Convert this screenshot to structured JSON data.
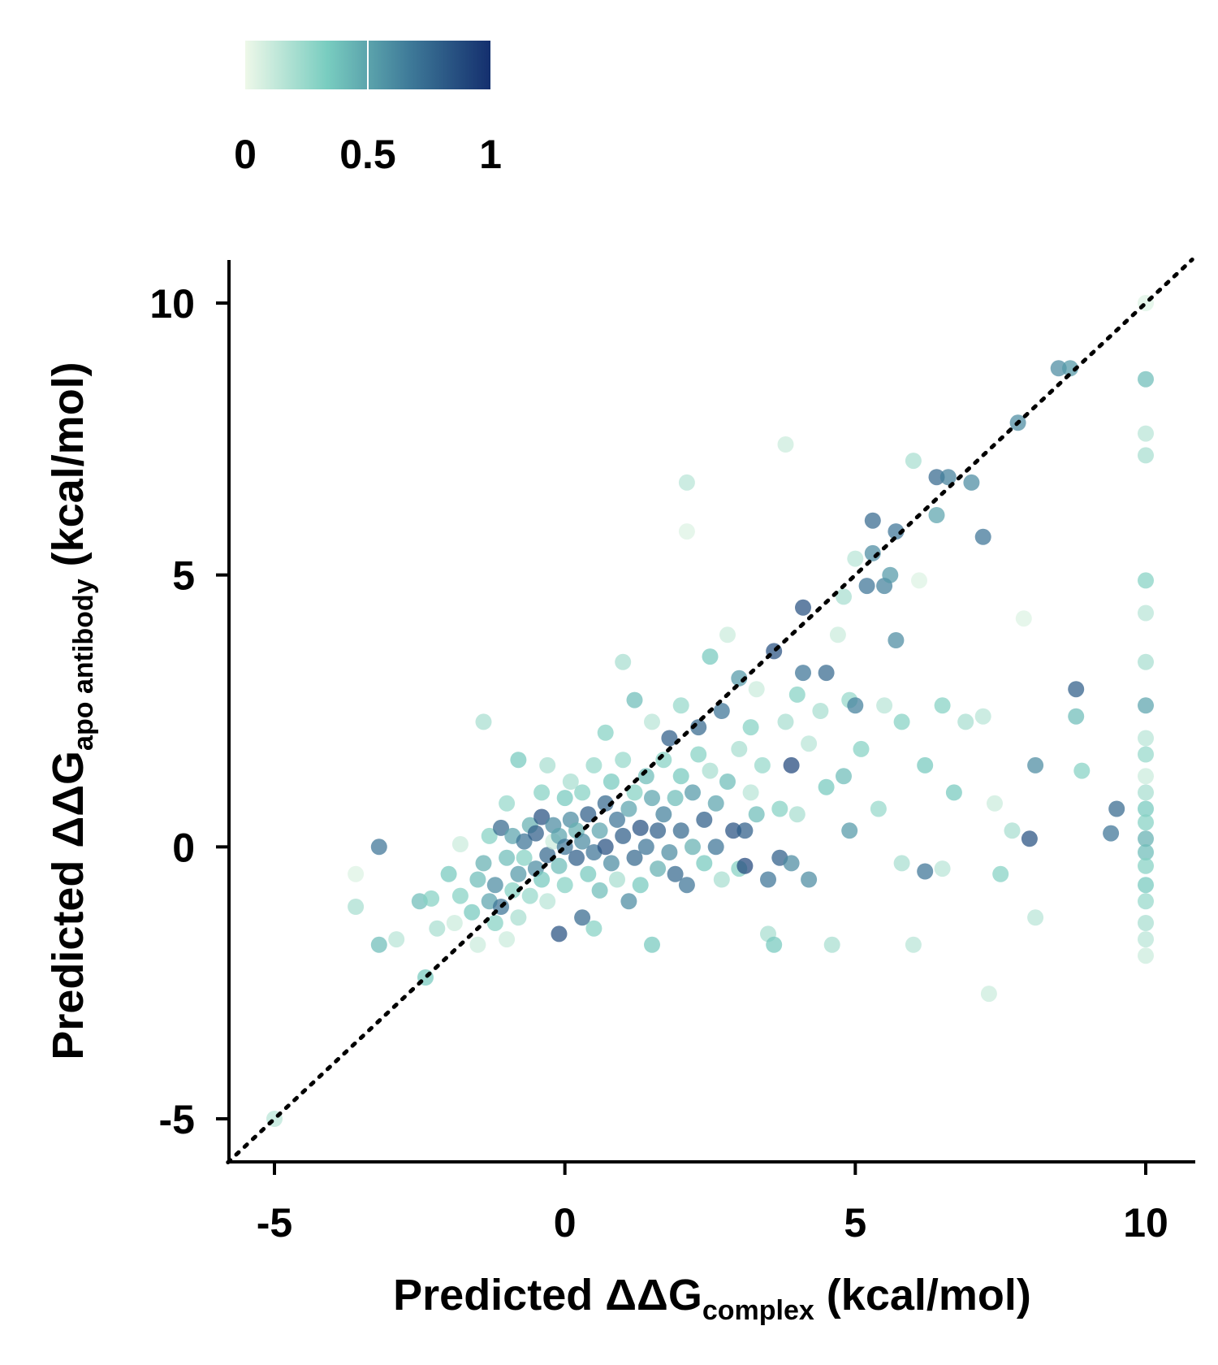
{
  "chart_data": {
    "type": "scatter",
    "title": "",
    "xlabel": {
      "prefix": "Predicted ΔΔG",
      "subscript": "complex",
      "suffix": " (kcal/mol)"
    },
    "ylabel": {
      "prefix": "Predicted ΔΔG",
      "subscript": "apo antibody",
      "suffix": " (kcal/mol)"
    },
    "xlim": [
      -5.8,
      10.8
    ],
    "ylim": [
      -5.8,
      10.8
    ],
    "xticks": [
      -5,
      0,
      5,
      10
    ],
    "yticks": [
      -5,
      0,
      5,
      10
    ],
    "xtick_labels": [
      "-5",
      "0",
      "5",
      "10"
    ],
    "ytick_labels": [
      "-5",
      "0",
      "5",
      "10"
    ],
    "reference_line": {
      "style": "dotted",
      "color": "#000000",
      "from": [
        -5.8,
        -5.8
      ],
      "to": [
        10.8,
        10.8
      ]
    },
    "grid": false,
    "colorbar": {
      "position": "top-left",
      "orientation": "horizontal",
      "range": [
        0,
        1
      ],
      "tick_values": [
        0,
        0.5,
        1
      ],
      "tick_labels": [
        "0",
        "0.5",
        "1"
      ],
      "colors": [
        "#eef8e9",
        "#79cdc0",
        "#3f7b99",
        "#142f6e"
      ]
    },
    "marker_opacity": 0.72,
    "points": [
      {
        "x": -5.0,
        "y": -5.0,
        "c": 0.15
      },
      {
        "x": -3.6,
        "y": -0.5,
        "c": 0.05
      },
      {
        "x": -3.6,
        "y": -1.1,
        "c": 0.2
      },
      {
        "x": -3.2,
        "y": 0.0,
        "c": 0.7
      },
      {
        "x": -3.2,
        "y": -1.8,
        "c": 0.4
      },
      {
        "x": -2.9,
        "y": -1.7,
        "c": 0.15
      },
      {
        "x": -2.5,
        "y": -1.0,
        "c": 0.4
      },
      {
        "x": -2.4,
        "y": -2.4,
        "c": 0.35
      },
      {
        "x": -2.3,
        "y": -0.95,
        "c": 0.3
      },
      {
        "x": -2.2,
        "y": -1.5,
        "c": 0.2
      },
      {
        "x": -2.0,
        "y": -0.5,
        "c": 0.35
      },
      {
        "x": -1.9,
        "y": -1.4,
        "c": 0.1
      },
      {
        "x": -1.8,
        "y": -0.9,
        "c": 0.3
      },
      {
        "x": -1.8,
        "y": 0.05,
        "c": 0.1
      },
      {
        "x": -1.6,
        "y": -1.2,
        "c": 0.35
      },
      {
        "x": -1.5,
        "y": -0.6,
        "c": 0.4
      },
      {
        "x": -1.5,
        "y": -1.8,
        "c": 0.1
      },
      {
        "x": -1.4,
        "y": 2.3,
        "c": 0.2
      },
      {
        "x": -1.4,
        "y": -0.3,
        "c": 0.45
      },
      {
        "x": -1.3,
        "y": -1.0,
        "c": 0.5
      },
      {
        "x": -1.3,
        "y": 0.2,
        "c": 0.3
      },
      {
        "x": -1.2,
        "y": -1.4,
        "c": 0.3
      },
      {
        "x": -1.2,
        "y": -0.7,
        "c": 0.6
      },
      {
        "x": -1.1,
        "y": 0.35,
        "c": 0.75
      },
      {
        "x": -1.1,
        "y": -1.1,
        "c": 0.7
      },
      {
        "x": -1.0,
        "y": -0.2,
        "c": 0.4
      },
      {
        "x": -1.0,
        "y": 0.8,
        "c": 0.25
      },
      {
        "x": -1.0,
        "y": -1.7,
        "c": 0.1
      },
      {
        "x": -0.9,
        "y": 0.2,
        "c": 0.5
      },
      {
        "x": -0.9,
        "y": -0.8,
        "c": 0.3
      },
      {
        "x": -0.8,
        "y": 1.6,
        "c": 0.35
      },
      {
        "x": -0.8,
        "y": -0.5,
        "c": 0.55
      },
      {
        "x": -0.8,
        "y": -1.3,
        "c": 0.2
      },
      {
        "x": -0.7,
        "y": 0.1,
        "c": 0.7
      },
      {
        "x": -0.7,
        "y": -0.2,
        "c": 0.3
      },
      {
        "x": -0.6,
        "y": 0.4,
        "c": 0.45
      },
      {
        "x": -0.6,
        "y": -0.9,
        "c": 0.25
      },
      {
        "x": -0.5,
        "y": 0.25,
        "c": 0.8
      },
      {
        "x": -0.5,
        "y": -0.4,
        "c": 0.6
      },
      {
        "x": -0.4,
        "y": 1.0,
        "c": 0.3
      },
      {
        "x": -0.4,
        "y": 0.55,
        "c": 0.85
      },
      {
        "x": -0.4,
        "y": -0.6,
        "c": 0.35
      },
      {
        "x": -0.3,
        "y": 1.5,
        "c": 0.2
      },
      {
        "x": -0.3,
        "y": -0.15,
        "c": 0.75
      },
      {
        "x": -0.3,
        "y": -1.0,
        "c": 0.15
      },
      {
        "x": -0.2,
        "y": 0.1,
        "c": 0.1
      },
      {
        "x": -0.2,
        "y": 0.4,
        "c": 0.6
      },
      {
        "x": -0.1,
        "y": -1.6,
        "c": 0.85
      },
      {
        "x": -0.1,
        "y": 0.2,
        "c": 0.5
      },
      {
        "x": -0.1,
        "y": -0.35,
        "c": 0.4
      },
      {
        "x": 0.0,
        "y": 0.9,
        "c": 0.35
      },
      {
        "x": 0.0,
        "y": 0.0,
        "c": 0.7
      },
      {
        "x": 0.0,
        "y": -0.7,
        "c": 0.3
      },
      {
        "x": 0.1,
        "y": 0.5,
        "c": 0.6
      },
      {
        "x": 0.1,
        "y": 1.2,
        "c": 0.2
      },
      {
        "x": 0.2,
        "y": -0.2,
        "c": 0.8
      },
      {
        "x": 0.2,
        "y": 0.3,
        "c": 0.45
      },
      {
        "x": 0.3,
        "y": 1.0,
        "c": 0.3
      },
      {
        "x": 0.3,
        "y": -1.3,
        "c": 0.75
      },
      {
        "x": 0.3,
        "y": 0.1,
        "c": 0.6
      },
      {
        "x": 0.4,
        "y": -0.5,
        "c": 0.35
      },
      {
        "x": 0.4,
        "y": 0.6,
        "c": 0.8
      },
      {
        "x": 0.5,
        "y": 1.5,
        "c": 0.25
      },
      {
        "x": 0.5,
        "y": -0.1,
        "c": 0.7
      },
      {
        "x": 0.5,
        "y": -1.5,
        "c": 0.3
      },
      {
        "x": 0.6,
        "y": 0.3,
        "c": 0.5
      },
      {
        "x": 0.6,
        "y": -0.8,
        "c": 0.4
      },
      {
        "x": 0.7,
        "y": 0.8,
        "c": 0.75
      },
      {
        "x": 0.7,
        "y": 2.1,
        "c": 0.3
      },
      {
        "x": 0.7,
        "y": 0.0,
        "c": 0.85
      },
      {
        "x": 0.8,
        "y": -0.3,
        "c": 0.6
      },
      {
        "x": 0.8,
        "y": 1.2,
        "c": 0.35
      },
      {
        "x": 0.9,
        "y": 0.5,
        "c": 0.7
      },
      {
        "x": 0.9,
        "y": -0.6,
        "c": 0.2
      },
      {
        "x": 1.0,
        "y": 3.4,
        "c": 0.2
      },
      {
        "x": 1.0,
        "y": 0.2,
        "c": 0.8
      },
      {
        "x": 1.0,
        "y": 1.6,
        "c": 0.25
      },
      {
        "x": 1.1,
        "y": -1.0,
        "c": 0.6
      },
      {
        "x": 1.1,
        "y": 0.7,
        "c": 0.5
      },
      {
        "x": 1.2,
        "y": 2.7,
        "c": 0.4
      },
      {
        "x": 1.2,
        "y": -0.2,
        "c": 0.75
      },
      {
        "x": 1.2,
        "y": 1.0,
        "c": 0.3
      },
      {
        "x": 1.3,
        "y": 0.35,
        "c": 0.85
      },
      {
        "x": 1.3,
        "y": -0.7,
        "c": 0.35
      },
      {
        "x": 1.4,
        "y": 1.3,
        "c": 0.4
      },
      {
        "x": 1.4,
        "y": 0.0,
        "c": 0.7
      },
      {
        "x": 1.5,
        "y": -1.8,
        "c": 0.35
      },
      {
        "x": 1.5,
        "y": 0.9,
        "c": 0.5
      },
      {
        "x": 1.5,
        "y": 2.3,
        "c": 0.15
      },
      {
        "x": 1.6,
        "y": 0.3,
        "c": 0.8
      },
      {
        "x": 1.6,
        "y": -0.4,
        "c": 0.45
      },
      {
        "x": 1.7,
        "y": 1.6,
        "c": 0.3
      },
      {
        "x": 1.7,
        "y": 0.6,
        "c": 0.65
      },
      {
        "x": 1.8,
        "y": 2.0,
        "c": 0.8
      },
      {
        "x": 1.8,
        "y": -0.1,
        "c": 0.6
      },
      {
        "x": 1.9,
        "y": 0.9,
        "c": 0.4
      },
      {
        "x": 1.9,
        "y": -0.5,
        "c": 0.75
      },
      {
        "x": 2.0,
        "y": 2.6,
        "c": 0.25
      },
      {
        "x": 2.0,
        "y": 0.3,
        "c": 0.75
      },
      {
        "x": 2.0,
        "y": 1.3,
        "c": 0.35
      },
      {
        "x": 2.1,
        "y": 6.7,
        "c": 0.15
      },
      {
        "x": 2.1,
        "y": 5.8,
        "c": 0.05
      },
      {
        "x": 2.1,
        "y": -0.7,
        "c": 0.7
      },
      {
        "x": 2.2,
        "y": 1.0,
        "c": 0.55
      },
      {
        "x": 2.2,
        "y": 0.0,
        "c": 0.45
      },
      {
        "x": 2.3,
        "y": 2.2,
        "c": 0.75
      },
      {
        "x": 2.3,
        "y": 1.7,
        "c": 0.3
      },
      {
        "x": 2.4,
        "y": 0.5,
        "c": 0.8
      },
      {
        "x": 2.4,
        "y": -0.3,
        "c": 0.35
      },
      {
        "x": 2.5,
        "y": 3.5,
        "c": 0.35
      },
      {
        "x": 2.5,
        "y": 1.4,
        "c": 0.2
      },
      {
        "x": 2.6,
        "y": 0.8,
        "c": 0.5
      },
      {
        "x": 2.6,
        "y": 0.0,
        "c": 0.7
      },
      {
        "x": 2.7,
        "y": 2.5,
        "c": 0.7
      },
      {
        "x": 2.7,
        "y": -0.6,
        "c": 0.2
      },
      {
        "x": 2.8,
        "y": 1.2,
        "c": 0.4
      },
      {
        "x": 2.8,
        "y": 3.9,
        "c": 0.1
      },
      {
        "x": 2.9,
        "y": 0.3,
        "c": 0.85
      },
      {
        "x": 3.0,
        "y": 3.1,
        "c": 0.55
      },
      {
        "x": 3.0,
        "y": 1.8,
        "c": 0.2
      },
      {
        "x": 3.0,
        "y": -0.4,
        "c": 0.3
      },
      {
        "x": 3.1,
        "y": 0.3,
        "c": 0.8
      },
      {
        "x": 3.1,
        "y": -0.35,
        "c": 0.9
      },
      {
        "x": 3.2,
        "y": 2.2,
        "c": 0.3
      },
      {
        "x": 3.2,
        "y": 1.0,
        "c": 0.15
      },
      {
        "x": 3.3,
        "y": 2.9,
        "c": 0.1
      },
      {
        "x": 3.3,
        "y": 0.6,
        "c": 0.4
      },
      {
        "x": 3.4,
        "y": 1.5,
        "c": 0.25
      },
      {
        "x": 3.5,
        "y": -1.6,
        "c": 0.2
      },
      {
        "x": 3.5,
        "y": -0.6,
        "c": 0.7
      },
      {
        "x": 3.6,
        "y": 3.6,
        "c": 0.85
      },
      {
        "x": 3.6,
        "y": -1.8,
        "c": 0.35
      },
      {
        "x": 3.7,
        "y": 0.7,
        "c": 0.3
      },
      {
        "x": 3.7,
        "y": -0.2,
        "c": 0.8
      },
      {
        "x": 3.8,
        "y": 7.4,
        "c": 0.1
      },
      {
        "x": 3.8,
        "y": 2.3,
        "c": 0.2
      },
      {
        "x": 3.9,
        "y": 1.5,
        "c": 0.9
      },
      {
        "x": 3.9,
        "y": -0.3,
        "c": 0.6
      },
      {
        "x": 4.0,
        "y": 2.8,
        "c": 0.3
      },
      {
        "x": 4.0,
        "y": 0.6,
        "c": 0.2
      },
      {
        "x": 4.1,
        "y": 4.4,
        "c": 0.85
      },
      {
        "x": 4.1,
        "y": 3.2,
        "c": 0.7
      },
      {
        "x": 4.2,
        "y": 1.9,
        "c": 0.15
      },
      {
        "x": 4.2,
        "y": -0.6,
        "c": 0.6
      },
      {
        "x": 4.4,
        "y": 2.5,
        "c": 0.2
      },
      {
        "x": 4.5,
        "y": 3.2,
        "c": 0.75
      },
      {
        "x": 4.5,
        "y": 1.1,
        "c": 0.35
      },
      {
        "x": 4.6,
        "y": -1.8,
        "c": 0.2
      },
      {
        "x": 4.7,
        "y": 3.9,
        "c": 0.1
      },
      {
        "x": 4.8,
        "y": 4.6,
        "c": 0.2
      },
      {
        "x": 4.8,
        "y": 1.3,
        "c": 0.4
      },
      {
        "x": 4.9,
        "y": 2.7,
        "c": 0.25
      },
      {
        "x": 4.9,
        "y": 0.3,
        "c": 0.55
      },
      {
        "x": 5.0,
        "y": 2.6,
        "c": 0.65
      },
      {
        "x": 5.0,
        "y": 5.3,
        "c": 0.15
      },
      {
        "x": 5.1,
        "y": 1.8,
        "c": 0.3
      },
      {
        "x": 5.2,
        "y": 4.8,
        "c": 0.7
      },
      {
        "x": 5.3,
        "y": 5.4,
        "c": 0.6
      },
      {
        "x": 5.3,
        "y": 6.0,
        "c": 0.75
      },
      {
        "x": 5.4,
        "y": 0.7,
        "c": 0.25
      },
      {
        "x": 5.5,
        "y": 4.8,
        "c": 0.65
      },
      {
        "x": 5.5,
        "y": 2.6,
        "c": 0.15
      },
      {
        "x": 5.6,
        "y": 5.0,
        "c": 0.55
      },
      {
        "x": 5.7,
        "y": 5.8,
        "c": 0.7
      },
      {
        "x": 5.7,
        "y": 3.8,
        "c": 0.6
      },
      {
        "x": 5.8,
        "y": 2.3,
        "c": 0.3
      },
      {
        "x": 5.8,
        "y": -0.3,
        "c": 0.2
      },
      {
        "x": 6.0,
        "y": 7.1,
        "c": 0.2
      },
      {
        "x": 6.0,
        "y": -1.8,
        "c": 0.15
      },
      {
        "x": 6.1,
        "y": 4.9,
        "c": 0.05
      },
      {
        "x": 6.2,
        "y": 1.5,
        "c": 0.35
      },
      {
        "x": 6.2,
        "y": -0.45,
        "c": 0.7
      },
      {
        "x": 6.4,
        "y": 6.1,
        "c": 0.5
      },
      {
        "x": 6.4,
        "y": 6.8,
        "c": 0.75
      },
      {
        "x": 6.5,
        "y": 2.6,
        "c": 0.3
      },
      {
        "x": 6.5,
        "y": -0.4,
        "c": 0.15
      },
      {
        "x": 6.6,
        "y": 6.8,
        "c": 0.65
      },
      {
        "x": 6.7,
        "y": 1.0,
        "c": 0.35
      },
      {
        "x": 6.9,
        "y": 2.3,
        "c": 0.2
      },
      {
        "x": 7.0,
        "y": 6.7,
        "c": 0.6
      },
      {
        "x": 7.2,
        "y": 5.7,
        "c": 0.7
      },
      {
        "x": 7.2,
        "y": 2.4,
        "c": 0.15
      },
      {
        "x": 7.3,
        "y": -2.7,
        "c": 0.1
      },
      {
        "x": 7.4,
        "y": 0.8,
        "c": 0.1
      },
      {
        "x": 7.5,
        "y": -0.5,
        "c": 0.3
      },
      {
        "x": 7.7,
        "y": 0.3,
        "c": 0.2
      },
      {
        "x": 7.8,
        "y": 7.8,
        "c": 0.6
      },
      {
        "x": 7.9,
        "y": 4.2,
        "c": 0.05
      },
      {
        "x": 8.0,
        "y": 0.15,
        "c": 0.85
      },
      {
        "x": 8.1,
        "y": 1.5,
        "c": 0.6
      },
      {
        "x": 8.1,
        "y": -1.3,
        "c": 0.15
      },
      {
        "x": 8.5,
        "y": 8.8,
        "c": 0.6
      },
      {
        "x": 8.7,
        "y": 8.8,
        "c": 0.55
      },
      {
        "x": 8.8,
        "y": 2.9,
        "c": 0.8
      },
      {
        "x": 8.8,
        "y": 2.4,
        "c": 0.4
      },
      {
        "x": 8.9,
        "y": 1.4,
        "c": 0.3
      },
      {
        "x": 9.5,
        "y": 0.7,
        "c": 0.75
      },
      {
        "x": 9.4,
        "y": 0.25,
        "c": 0.7
      },
      {
        "x": 10.0,
        "y": 10.0,
        "c": 0.05
      },
      {
        "x": 10.0,
        "y": 8.6,
        "c": 0.4
      },
      {
        "x": 10.0,
        "y": 7.6,
        "c": 0.15
      },
      {
        "x": 10.0,
        "y": 7.2,
        "c": 0.2
      },
      {
        "x": 10.0,
        "y": 4.9,
        "c": 0.3
      },
      {
        "x": 10.0,
        "y": 4.3,
        "c": 0.15
      },
      {
        "x": 10.0,
        "y": 3.4,
        "c": 0.2
      },
      {
        "x": 10.0,
        "y": 2.6,
        "c": 0.5
      },
      {
        "x": 10.0,
        "y": 2.0,
        "c": 0.15
      },
      {
        "x": 10.0,
        "y": 1.7,
        "c": 0.25
      },
      {
        "x": 10.0,
        "y": 1.3,
        "c": 0.1
      },
      {
        "x": 10.0,
        "y": 1.0,
        "c": 0.2
      },
      {
        "x": 10.0,
        "y": 0.7,
        "c": 0.35
      },
      {
        "x": 10.0,
        "y": 0.45,
        "c": 0.3
      },
      {
        "x": 10.0,
        "y": 0.15,
        "c": 0.45
      },
      {
        "x": 10.0,
        "y": -0.1,
        "c": 0.4
      },
      {
        "x": 10.0,
        "y": -0.35,
        "c": 0.3
      },
      {
        "x": 10.0,
        "y": -0.7,
        "c": 0.35
      },
      {
        "x": 10.0,
        "y": -1.0,
        "c": 0.25
      },
      {
        "x": 10.0,
        "y": -1.4,
        "c": 0.2
      },
      {
        "x": 10.0,
        "y": -1.7,
        "c": 0.15
      },
      {
        "x": 10.0,
        "y": -2.0,
        "c": 0.1
      }
    ]
  }
}
